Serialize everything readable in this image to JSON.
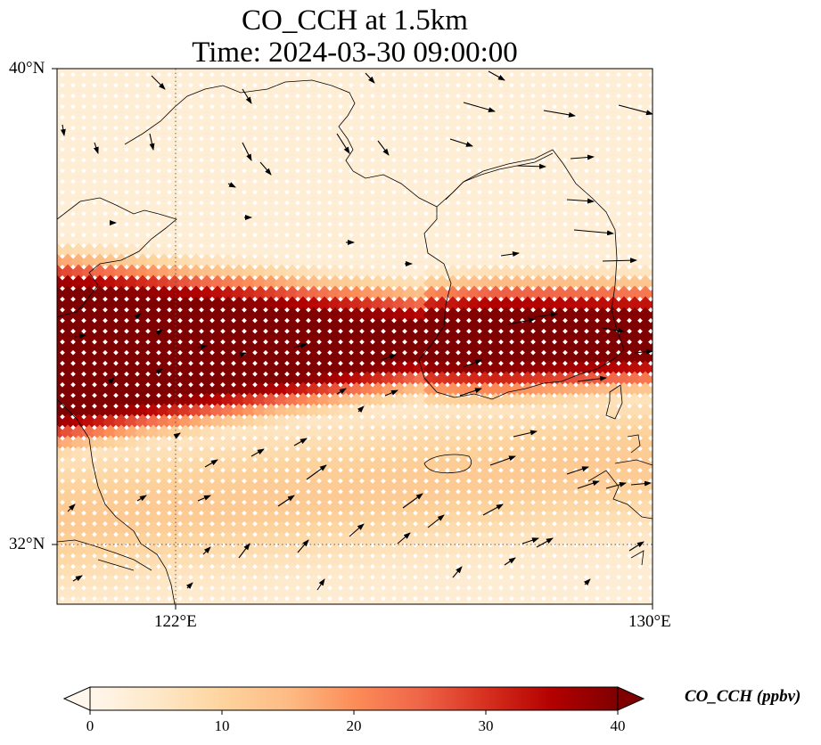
{
  "title": {
    "line1": "CO_CCH at 1.5km",
    "line2": "Time: 2024-03-30 09:00:00"
  },
  "axes": {
    "lat_labels": [
      "40°N",
      "32°N"
    ],
    "lon_labels": [
      "122°E",
      "130°E"
    ],
    "lat_range": [
      31,
      40
    ],
    "lon_range": [
      120,
      130
    ],
    "gridlines": "dotted",
    "gridline_lats": [
      32
    ],
    "gridline_lons": [
      122
    ]
  },
  "colorbar": {
    "label": "CO_CCH (ppbv)",
    "ticks": [
      "0",
      "10",
      "20",
      "30",
      "40"
    ],
    "range": [
      0,
      40
    ],
    "extend": "both",
    "colormap": "OrRd",
    "colors": [
      "#fff7ec",
      "#fee8c8",
      "#fdd49e",
      "#fdbb84",
      "#fc8d59",
      "#ef6548",
      "#d7301f",
      "#b30000",
      "#7f0000"
    ]
  },
  "field": {
    "description_free": true,
    "core_plume_value": 40,
    "background_value": 2
  },
  "wind": {
    "vector_color": "#000000"
  }
}
